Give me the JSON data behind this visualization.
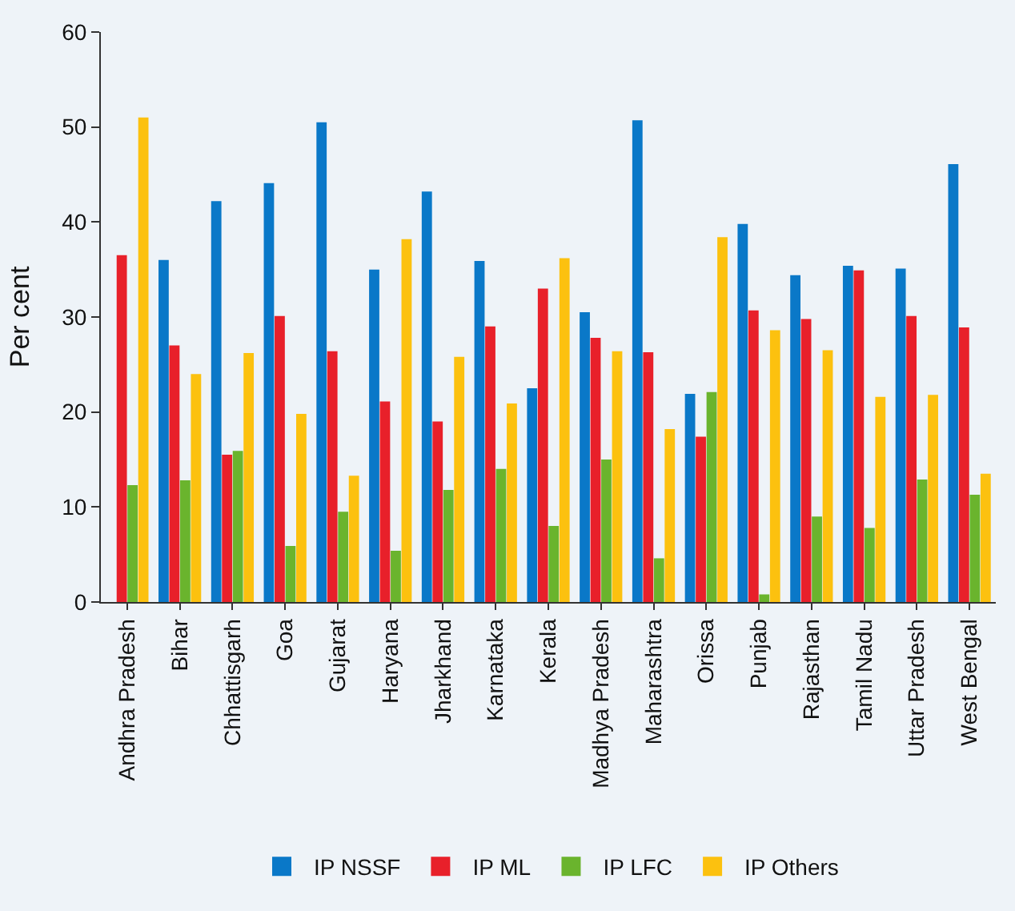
{
  "chart_data": {
    "type": "bar",
    "ylabel": "Per cent",
    "ylim": [
      0,
      60
    ],
    "yticks": [
      0,
      10,
      20,
      30,
      40,
      50,
      60
    ],
    "grid": false,
    "legend": "bottom",
    "categories": [
      "Andhra Pradesh",
      "Bihar",
      "Chhattisgarh",
      "Goa",
      "Gujarat",
      "Haryana",
      "Jharkhand",
      "Karnataka",
      "Kerala",
      "Madhya Pradesh",
      "Maharashtra",
      "Orissa",
      "Punjab",
      "Rajasthan",
      "Tamil Nadu",
      "Uttar Pradesh",
      "West Bengal"
    ],
    "series": [
      {
        "name": "IP NSSF",
        "color": "#0a78c8",
        "values": [
          null,
          36,
          42.2,
          44.1,
          50.5,
          35,
          43.2,
          35.9,
          22.5,
          30.5,
          50.7,
          21.9,
          39.8,
          34.4,
          35.4,
          35.1,
          46.1
        ]
      },
      {
        "name": "IP ML",
        "color": "#e8202a",
        "values": [
          36.5,
          27,
          15.5,
          30.1,
          26.4,
          21.1,
          19,
          29,
          33,
          27.8,
          26.3,
          17.4,
          30.7,
          29.8,
          34.9,
          30.1,
          28.9
        ]
      },
      {
        "name": "IP LFC",
        "color": "#6ab42d",
        "values": [
          12.3,
          12.8,
          15.9,
          5.9,
          9.5,
          5.4,
          11.8,
          14,
          8,
          15,
          4.6,
          22.1,
          0.8,
          9,
          7.8,
          12.9,
          11.3
        ]
      },
      {
        "name": "IP Others",
        "color": "#fcc10f",
        "values": [
          51,
          24,
          26.2,
          19.8,
          13.3,
          38.2,
          25.8,
          20.9,
          36.2,
          26.4,
          18.2,
          38.4,
          28.6,
          26.5,
          21.6,
          21.8,
          13.5
        ]
      }
    ]
  }
}
